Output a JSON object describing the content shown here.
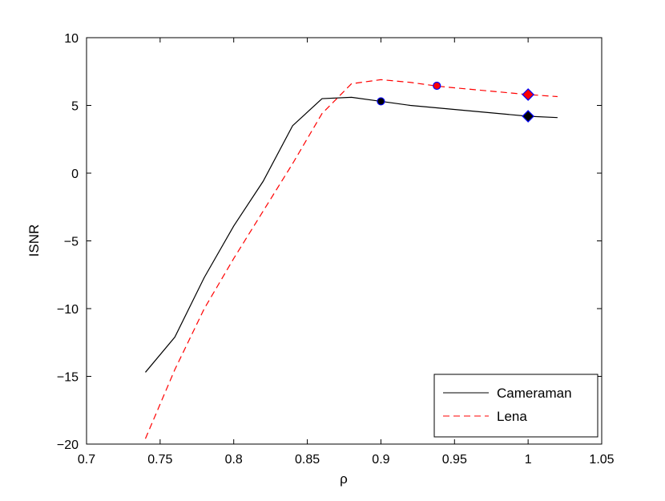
{
  "chart_data": {
    "type": "line",
    "xlabel": "ρ",
    "ylabel": "ISNR",
    "xlim": [
      0.7,
      1.05
    ],
    "ylim": [
      -20,
      10
    ],
    "xticks": [
      0.7,
      0.75,
      0.8,
      0.85,
      0.9,
      0.95,
      1,
      1.05
    ],
    "xtick_labels": [
      "0.7",
      "0.75",
      "0.8",
      "0.85",
      "0.9",
      "0.95",
      "1",
      "1.05"
    ],
    "yticks": [
      -20,
      -15,
      -10,
      -5,
      0,
      5,
      10
    ],
    "ytick_labels": [
      "−20",
      "−15",
      "−10",
      "−5",
      "0",
      "5",
      "10"
    ],
    "grid": false,
    "legend_position": "bottom-right",
    "series": [
      {
        "name": "Cameraman",
        "color": "#000000",
        "style": "solid",
        "x": [
          0.74,
          0.76,
          0.78,
          0.8,
          0.82,
          0.84,
          0.86,
          0.88,
          0.9,
          0.92,
          0.94,
          0.96,
          0.98,
          1.0,
          1.02
        ],
        "y": [
          -14.7,
          -12.1,
          -7.7,
          -3.9,
          -0.6,
          3.5,
          5.5,
          5.6,
          5.3,
          5.0,
          4.8,
          4.6,
          4.4,
          4.2,
          4.1
        ]
      },
      {
        "name": "Lena",
        "color": "#ff0000",
        "style": "dashed",
        "x": [
          0.74,
          0.76,
          0.78,
          0.8,
          0.82,
          0.84,
          0.86,
          0.88,
          0.9,
          0.92,
          0.94,
          0.96,
          0.98,
          1.0,
          1.02
        ],
        "y": [
          -19.6,
          -14.5,
          -10.0,
          -6.3,
          -2.8,
          0.7,
          4.4,
          6.6,
          6.9,
          6.7,
          6.4,
          6.2,
          6.0,
          5.8,
          5.65
        ]
      }
    ],
    "markers": [
      {
        "series": "Cameraman",
        "shape": "circle",
        "x": 0.9,
        "y": 5.3,
        "fill": "#000000",
        "stroke": "#0000ff"
      },
      {
        "series": "Cameraman",
        "shape": "diamond",
        "x": 1.0,
        "y": 4.2,
        "fill": "#000000",
        "stroke": "#0000ff"
      },
      {
        "series": "Lena",
        "shape": "circle",
        "x": 0.938,
        "y": 6.45,
        "fill": "#ff0000",
        "stroke": "#0000ff"
      },
      {
        "series": "Lena",
        "shape": "diamond",
        "x": 1.0,
        "y": 5.8,
        "fill": "#ff0000",
        "stroke": "#0000ff"
      }
    ]
  }
}
